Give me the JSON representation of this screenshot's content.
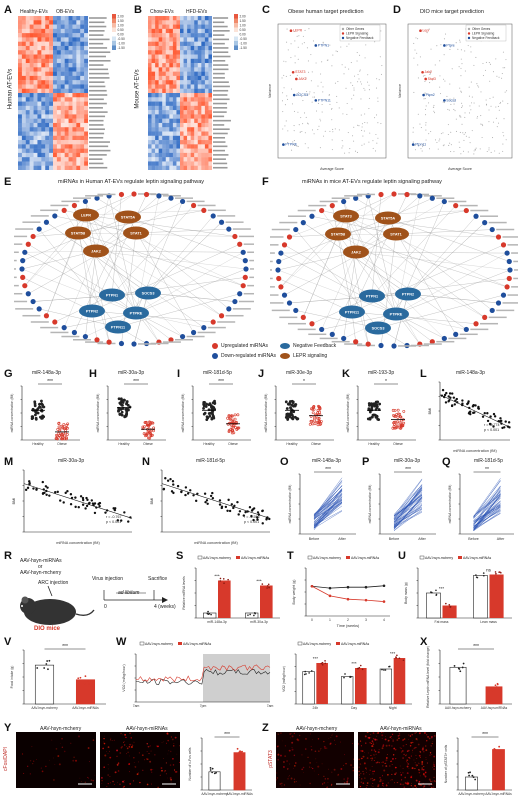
{
  "panel_letters": [
    "A",
    "B",
    "C",
    "D",
    "E",
    "F",
    "G",
    "H",
    "I",
    "J",
    "K",
    "L",
    "M",
    "N",
    "O",
    "P",
    "Q",
    "R",
    "S",
    "T",
    "U",
    "V",
    "W",
    "X",
    "Y",
    "Z"
  ],
  "heatmaps": {
    "A": {
      "columns": [
        "Healthy-EVs",
        "OB-EVs"
      ],
      "ylabel": "Human AT-EVs",
      "rows": 36,
      "legend_ticks": [
        "2.00",
        "1.50",
        "1.00",
        "0.50",
        "0.00",
        "-0.50",
        "-1.00",
        "-1.50"
      ]
    },
    "B": {
      "columns": [
        "Chow-EVs",
        "HFD-EVs"
      ],
      "ylabel": "Mouse AT-EVs",
      "rows": 36,
      "legend_ticks": [
        "2.00",
        "1.50",
        "1.00",
        "0.50",
        "0.00",
        "-0.50",
        "-1.00",
        "-1.50"
      ]
    }
  },
  "target_prediction": {
    "C": {
      "title": "Obese human target prediction",
      "legend": [
        "Other Genes",
        "LEPR Signaling",
        "Negative Feedback"
      ],
      "xlabel": "Average Score",
      "ylabel": "Variance",
      "genes": [
        "LEPR",
        "STAT3",
        "JAK2",
        "SOCS3",
        "PTPN1",
        "PTPN11",
        "PTPRE"
      ]
    },
    "D": {
      "title": "DIO mice target prediction",
      "legend": [
        "Other Genes",
        "LEPR Signaling",
        "Negative Feedback"
      ],
      "xlabel": "Average Score",
      "ylabel": "Variance",
      "genes": [
        "Lepr",
        "Jak2",
        "Stat3",
        "Ptpn2",
        "Ptpre",
        "Socs3",
        "Ptpn11"
      ]
    }
  },
  "networks": {
    "E": {
      "title": "miRNAs in Human AT-EVs regulate leptin signaling pathway",
      "hubs_brown": [
        "LEPR",
        "STAT5A",
        "STAT5B",
        "STAT1",
        "JAK2"
      ],
      "hubs_blue": [
        "PTPN1",
        "SOCS3",
        "PTPN2",
        "PTPRE",
        "PTPN11"
      ]
    },
    "F": {
      "title": "miRNAs in mice AT-EVs regulate leptin signaling pathway",
      "hubs_brown": [
        "STAT3",
        "STAT5A",
        "STAT5B",
        "STAT1",
        "JAK2"
      ],
      "hubs_blue": [
        "PTPN1",
        "PTPN2",
        "PTPN11",
        "PTPRE",
        "SOCS3"
      ]
    },
    "legend": [
      "Upregulated miRNAs",
      "Down-regulated miRNAs",
      "Negative Feedback",
      "LEPR signaling"
    ]
  },
  "scatter_panels": {
    "G": {
      "title": "miR-148a-3p",
      "sig": "***"
    },
    "H": {
      "title": "miR-30a-3p",
      "sig": "***"
    },
    "I": {
      "title": "miR-181d-5p",
      "sig": "***"
    },
    "J": {
      "title": "miR-30e-3p",
      "sig": "*"
    },
    "K": {
      "title": "miR-193-3p",
      "sig": "*"
    },
    "ylabel": "miRNA concentration (fM)",
    "groups": [
      "Healthy",
      "Obese"
    ]
  },
  "correlations": {
    "L": {
      "title": "miR-148a-3p",
      "stat1": "r = -0.774",
      "stat2": "p < 0.001",
      "ylabel": "BMI",
      "xlabel": "miRNA concentration (fM)"
    },
    "M": {
      "title": "miR-30a-3p",
      "stat1": "r = -0.767",
      "stat2": "p < 0.001",
      "ylabel": "BMI",
      "xlabel": "miRNA concentration (fM)"
    },
    "N": {
      "title": "miR-181d-5p",
      "stat1": "r = -0.556",
      "stat2": "p < 0.001",
      "ylabel": "BMI",
      "xlabel": "miRNA concentration (fM)"
    }
  },
  "paired": {
    "O": {
      "title": "miR-148a-3p",
      "sig": "***"
    },
    "P": {
      "title": "miR-30a-3p",
      "sig": "***"
    },
    "Q": {
      "title": "miR-181d-5p",
      "sig": "**"
    },
    "xticks": [
      "Before",
      "After"
    ],
    "ylabel": "miRNA concentration (fM)"
  },
  "schematic": {
    "line1": "AAV-hsyn-miRNAs",
    "line2": "or",
    "line3": "AAV-hsyn-mcherry",
    "arc": "ARC injection",
    "virus": "Virus injection",
    "adlib": "ad libitum",
    "sacrifice": "Sacrifice",
    "weeks": "4 (weeks)",
    "t0": "0",
    "dio": "DIO mice"
  },
  "series_legend": {
    "mcherry": "AAV-hsyn-mcherry",
    "mirnas": "AAV-hsyn-miRNAs"
  },
  "bar_panels": {
    "S": {
      "ylabel": "Relative miRNA levels",
      "categories": [
        "miR-148a-3p",
        "miR-30a-3p"
      ],
      "sig": [
        "***",
        "***"
      ]
    },
    "U": {
      "ylabel": "Body mass (g)",
      "categories": [
        "Fat mass",
        "Lean mass"
      ],
      "sig": [
        "***",
        "ns"
      ]
    },
    "V": {
      "ylabel": "Food intake (g)",
      "categories": [
        "AAV-hsyn-mcherry",
        "AAV-hsyn-miRNAs"
      ],
      "sig": [
        "***"
      ]
    },
    "X": {
      "ylabel": "Relative Leptin mRNA level (fold change)",
      "categories": [
        "AAV-hsyn-mcherry",
        "AAV-hsyn-miRNAs"
      ],
      "sig": [
        "***"
      ]
    },
    "W2": {
      "ylabel": "VO2 (ml/kg/hour)",
      "categories": [
        "24h",
        "Day",
        "Night"
      ],
      "sig": [
        "***",
        "***",
        "***"
      ]
    }
  },
  "line_T": {
    "xlabel": "Time (weeks)",
    "ylabel": "Body weight (g)"
  },
  "line_W": {
    "ylabel": "VO2 (ml/kg/hour)",
    "xticks": [
      "7am",
      "7pm",
      "7am"
    ]
  },
  "micro": {
    "Y": {
      "left": "AAV-hsyn-mcherry",
      "right": "AAV-hsyn-miRNAs",
      "stain": "cFos/DAPI",
      "bar_ylabel": "Number of c-Fos cells",
      "sig": "***"
    },
    "Z": {
      "left": "AAV-hsyn-mcherry",
      "right": "AAV-hsyn-miRNAs",
      "stain": "pSTAT3",
      "bar_ylabel": "Number of pSTAT3+ cells",
      "sig": "***"
    }
  },
  "colors": {
    "red": "#d7392b",
    "blue": "#1f4e9c",
    "brown": "#a0521a",
    "steel": "#2a6a9e",
    "gray": "#888888"
  }
}
